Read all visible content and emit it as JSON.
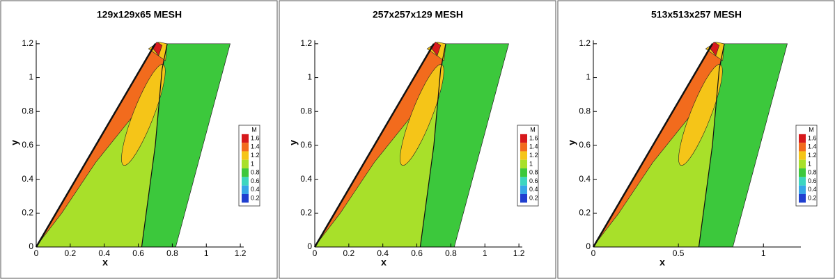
{
  "chart_data": [
    {
      "type": "contour",
      "title": "129x129x65 MESH",
      "x_label": "x",
      "y_label": "y",
      "xlim": [
        0,
        1.22
      ],
      "ylim": [
        0,
        1.22
      ],
      "xticks": [
        0,
        0.2,
        0.4,
        0.6,
        0.8,
        1,
        1.2
      ],
      "yticks": [
        0,
        0.2,
        0.4,
        0.6,
        0.8,
        1,
        1.2
      ],
      "legend": {
        "title": "M",
        "levels": [
          1.6,
          1.4,
          1.2,
          1,
          0.8,
          0.6,
          0.4,
          0.2
        ],
        "colors": [
          "#d7191c",
          "#f26b1d",
          "#f5c518",
          "#a8e02a",
          "#3cc83c",
          "#3cd6c0",
          "#36a6e8",
          "#1f3fd0"
        ]
      }
    },
    {
      "type": "contour",
      "title": "257x257x129 MESH",
      "x_label": "x",
      "y_label": "y",
      "xlim": [
        0,
        1.22
      ],
      "ylim": [
        0,
        1.22
      ],
      "xticks": [
        0,
        0.2,
        0.4,
        0.6,
        0.8,
        1,
        1.2
      ],
      "yticks": [
        0,
        0.2,
        0.4,
        0.6,
        0.8,
        1,
        1.2
      ],
      "legend": {
        "title": "M",
        "levels": [
          1.6,
          1.4,
          1.2,
          1,
          0.8,
          0.6,
          0.4,
          0.2
        ],
        "colors": [
          "#d7191c",
          "#f26b1d",
          "#f5c518",
          "#a8e02a",
          "#3cc83c",
          "#3cd6c0",
          "#36a6e8",
          "#1f3fd0"
        ]
      }
    },
    {
      "type": "contour",
      "title": "513x513x257 MESH",
      "x_label": "x",
      "y_label": "y",
      "xlim": [
        0,
        1.22
      ],
      "ylim": [
        0,
        1.22
      ],
      "xticks": [
        0,
        0.5,
        1
      ],
      "yticks": [
        0,
        0.2,
        0.4,
        0.6,
        0.8,
        1,
        1.2
      ],
      "legend": {
        "title": "M",
        "levels": [
          1.6,
          1.4,
          1.2,
          1,
          0.8,
          0.6,
          0.4,
          0.2
        ],
        "colors": [
          "#d7191c",
          "#f26b1d",
          "#f5c518",
          "#a8e02a",
          "#3cc83c",
          "#3cd6c0",
          "#36a6e8",
          "#1f3fd0"
        ]
      }
    }
  ]
}
